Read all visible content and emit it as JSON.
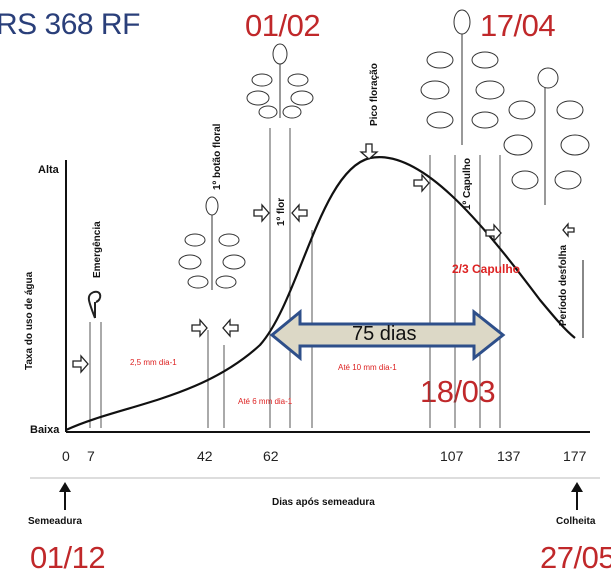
{
  "title": "RS 368 RF",
  "dates": {
    "first_flower": "01/02",
    "first_boll": "17/04",
    "boll_2_3": "18/03",
    "sowing": "01/12",
    "harvest": "27/05"
  },
  "y_axis": {
    "label": "Taxa do uso de água",
    "high": "Alta",
    "low": "Baixa"
  },
  "x_axis": {
    "label": "Dias após semeadura",
    "ticks": [
      "0",
      "7",
      "42",
      "62",
      "107",
      "137",
      "177"
    ]
  },
  "stages": {
    "emergence": "Emergência",
    "first_bud": "1º botão floral",
    "first_flower": "1º flor",
    "peak_flowering": "Pico floração",
    "first_boll": "1º Capulho",
    "defoliation": "Período desfolha",
    "two_thirds_boll": "2/3 Capulho"
  },
  "water_rates": {
    "rate1": "2,5 mm dia-1",
    "rate2": "Até 6 mm dia-1",
    "rate3": "Até 10 mm dia-1"
  },
  "duration_label": "75 dias",
  "events": {
    "sowing": "Semeadura",
    "harvest": "Colheita"
  }
}
